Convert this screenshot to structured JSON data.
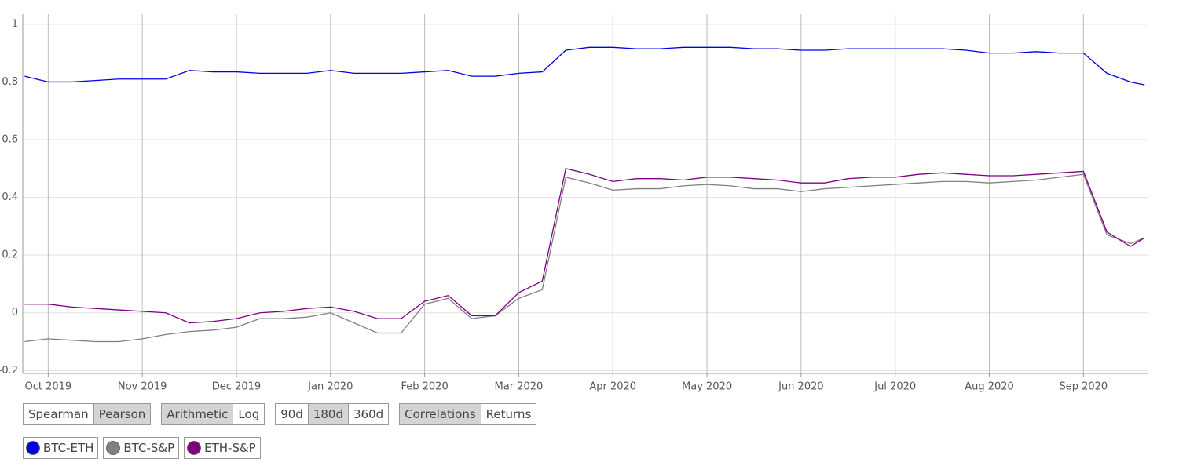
{
  "chart_data": {
    "type": "line",
    "x": [
      -0.25,
      0,
      0.25,
      0.5,
      0.75,
      1,
      1.25,
      1.5,
      1.75,
      2,
      2.25,
      2.5,
      2.75,
      3,
      3.25,
      3.5,
      3.75,
      4,
      4.25,
      4.5,
      4.75,
      5,
      5.25,
      5.5,
      5.75,
      6,
      6.25,
      6.5,
      6.75,
      7,
      7.25,
      7.5,
      7.75,
      8,
      8.25,
      8.5,
      8.75,
      9,
      9.25,
      9.5,
      9.75,
      10,
      10.25,
      10.5,
      10.75,
      11,
      11.25,
      11.5,
      11.65
    ],
    "xlim": [
      -0.27,
      11.69
    ],
    "xticks": [
      {
        "value": 0,
        "label": "Oct 2019"
      },
      {
        "value": 1,
        "label": "Nov 2019"
      },
      {
        "value": 2,
        "label": "Dec 2019"
      },
      {
        "value": 3,
        "label": "Jan 2020"
      },
      {
        "value": 4,
        "label": "Feb 2020"
      },
      {
        "value": 5,
        "label": "Mar 2020"
      },
      {
        "value": 6,
        "label": "Apr 2020"
      },
      {
        "value": 7,
        "label": "May 2020"
      },
      {
        "value": 8,
        "label": "Jun 2020"
      },
      {
        "value": 9,
        "label": "Jul 2020"
      },
      {
        "value": 10,
        "label": "Aug 2020"
      },
      {
        "value": 11,
        "label": "Sep 2020"
      }
    ],
    "ylim": [
      -0.21,
      1.035
    ],
    "yticks": [
      -0.2,
      0,
      0.2,
      0.4,
      0.6,
      0.8,
      1
    ],
    "grid": true,
    "series": [
      {
        "name": "BTC-ETH",
        "color": "#0000e6",
        "values": [
          0.82,
          0.8,
          0.8,
          0.805,
          0.81,
          0.81,
          0.81,
          0.84,
          0.835,
          0.835,
          0.83,
          0.83,
          0.83,
          0.84,
          0.83,
          0.83,
          0.83,
          0.835,
          0.84,
          0.82,
          0.82,
          0.83,
          0.835,
          0.91,
          0.92,
          0.92,
          0.915,
          0.915,
          0.92,
          0.92,
          0.92,
          0.915,
          0.915,
          0.91,
          0.91,
          0.915,
          0.915,
          0.915,
          0.915,
          0.915,
          0.91,
          0.9,
          0.9,
          0.905,
          0.9,
          0.9,
          0.83,
          0.8,
          0.79
        ]
      },
      {
        "name": "BTC-S&P",
        "color": "#808080",
        "values": [
          -0.1,
          -0.09,
          -0.095,
          -0.1,
          -0.1,
          -0.09,
          -0.075,
          -0.065,
          -0.06,
          -0.05,
          -0.02,
          -0.02,
          -0.015,
          0.0,
          -0.035,
          -0.07,
          -0.07,
          0.03,
          0.05,
          -0.02,
          -0.01,
          0.05,
          0.08,
          0.47,
          0.45,
          0.425,
          0.43,
          0.43,
          0.44,
          0.445,
          0.44,
          0.43,
          0.43,
          0.42,
          0.43,
          0.435,
          0.44,
          0.445,
          0.45,
          0.455,
          0.455,
          0.45,
          0.455,
          0.46,
          0.47,
          0.48,
          0.27,
          0.24,
          0.26
        ]
      },
      {
        "name": "ETH-S&P",
        "color": "#800080",
        "values": [
          0.03,
          0.03,
          0.02,
          0.015,
          0.01,
          0.005,
          0.0,
          -0.035,
          -0.03,
          -0.02,
          0.0,
          0.005,
          0.015,
          0.02,
          0.005,
          -0.02,
          -0.02,
          0.04,
          0.06,
          -0.01,
          -0.01,
          0.07,
          0.11,
          0.5,
          0.48,
          0.455,
          0.465,
          0.465,
          0.46,
          0.47,
          0.47,
          0.465,
          0.46,
          0.45,
          0.45,
          0.465,
          0.47,
          0.47,
          0.48,
          0.485,
          0.48,
          0.475,
          0.475,
          0.48,
          0.485,
          0.49,
          0.28,
          0.23,
          0.26
        ]
      }
    ]
  },
  "controls": [
    {
      "options": [
        "Spearman",
        "Pearson"
      ],
      "selected": 1
    },
    {
      "options": [
        "Arithmetic",
        "Log"
      ],
      "selected": 0
    },
    {
      "options": [
        "90d",
        "180d",
        "360d"
      ],
      "selected": 1
    },
    {
      "options": [
        "Correlations",
        "Returns"
      ],
      "selected": 0
    }
  ]
}
